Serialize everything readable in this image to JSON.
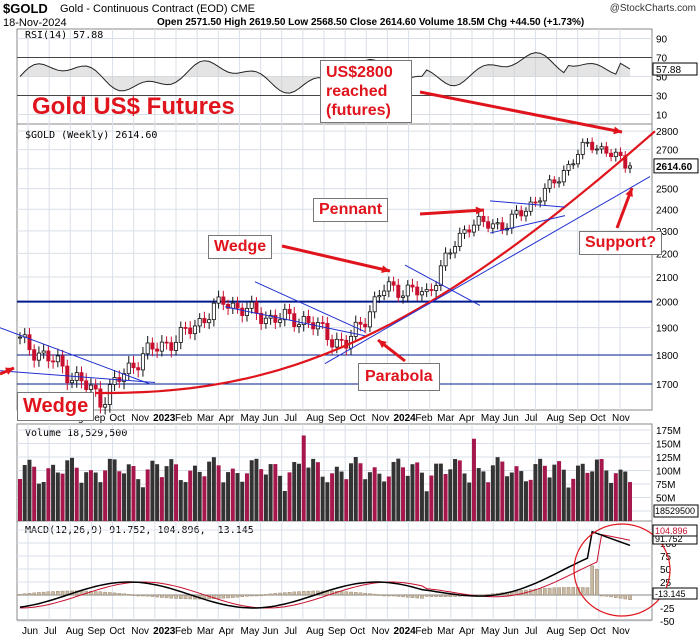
{
  "header": {
    "symbol": "$GOLD",
    "name": "Gold - Continuous Contract (EOD) CME",
    "date": "18-Nov-2024",
    "ohlc": "Open 2571.50  High 2619.50  Low 2568.50  Close 2614.60  Volume 18.5M  Chg +44.50 (+1.73%)",
    "watermark": "@StockCharts.com"
  },
  "chart_data": {
    "type": "line",
    "title": "Gold US$ Futures",
    "panels": {
      "rsi": {
        "label": "RSI(14) 57.88",
        "value": 57.88,
        "ticks": [
          90,
          70,
          50,
          30,
          10
        ],
        "ylim": [
          0,
          100
        ]
      },
      "price": {
        "label": "$GOLD (Weekly) 2614.60",
        "last": 2614.6,
        "last_label": "2614.60",
        "ticks": [
          2800,
          2700,
          2600,
          2500,
          2400,
          2300,
          2200,
          2100,
          2000,
          1900,
          1800,
          1700
        ],
        "ylim": [
          1615,
          2840
        ],
        "log_scale": true,
        "x": [
          "Jun 2022",
          "Aug 2022",
          "Oct 2022",
          "Dec 2022",
          "Feb 2023",
          "Apr 2023",
          "Jun 2023",
          "Aug 2023",
          "Oct 2023",
          "Dec 2023",
          "Feb 2024",
          "Apr 2024",
          "Jun 2024",
          "Aug 2024",
          "Oct 2024",
          "Nov 2024"
        ],
        "close_approx": [
          1850,
          1760,
          1650,
          1800,
          1870,
          2000,
          1940,
          1930,
          1830,
          2060,
          2030,
          2330,
          2330,
          2500,
          2740,
          2614.6
        ],
        "horizontal_levels": [
          2000,
          1800,
          1700
        ],
        "annotations": [
          "US$2800 reached (futures)",
          "Pennant",
          "Wedge",
          "Parabola",
          "Support?",
          "Wedge"
        ]
      },
      "volume": {
        "label": "Volume 18,529,500",
        "last": 18529500,
        "last_label": "18529500",
        "ticks": [
          "175M",
          "150M",
          "125M",
          "100M",
          "75M",
          "50M",
          "25M"
        ]
      },
      "macd": {
        "label": "MACD(12,26,9) 91.752, 104.896, -13.145",
        "macd": 91.752,
        "signal": 104.896,
        "histogram": -13.145,
        "macd_label": "91.752",
        "signal_label": "104.896",
        "hist_label": "-13.145",
        "ticks": [
          "125",
          "100",
          "75",
          "50",
          "25",
          "0",
          "-25",
          "-50"
        ]
      }
    },
    "x_ticks": [
      "Jun",
      "Jul",
      "Aug",
      "Sep",
      "Oct",
      "Nov",
      "2023",
      "Feb",
      "Mar",
      "Apr",
      "May",
      "Jun",
      "Jul",
      "Aug",
      "Sep",
      "Oct",
      "Nov",
      "2024",
      "Feb",
      "Mar",
      "Apr",
      "May",
      "Jun",
      "Jul",
      "Aug",
      "Sep",
      "Oct",
      "Nov"
    ],
    "colors": {
      "up": "#111111",
      "down": "#c8102e",
      "annotation": "#e0141c",
      "trendline": "#1f2fd0",
      "support_line": "#001a8c",
      "volume_up": "#333333",
      "volume_down": "#a6184d",
      "macd_hist": "#c9b8a1"
    }
  }
}
